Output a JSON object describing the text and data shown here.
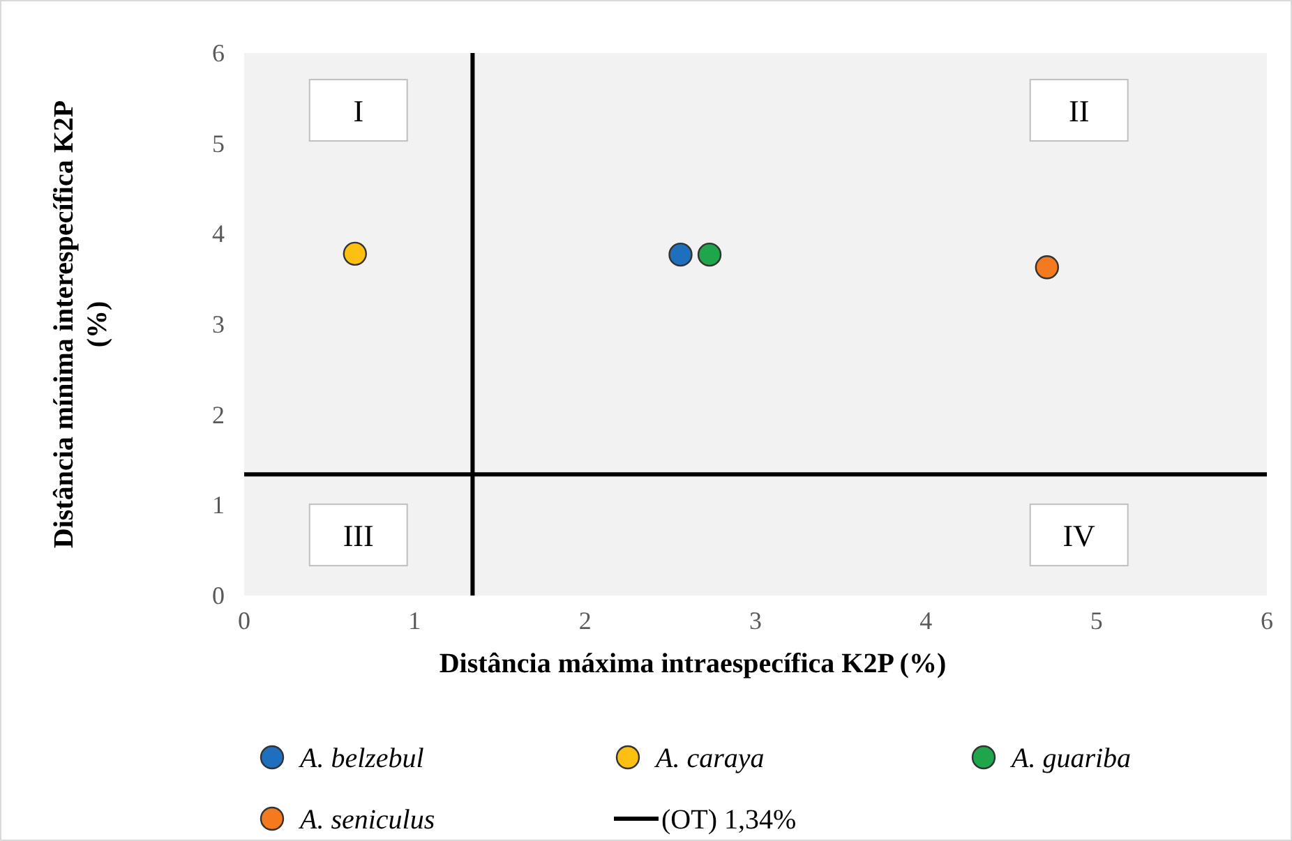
{
  "chart_data": {
    "type": "scatter",
    "xlabel": "Distância máxima intraespecífica K2P (%)",
    "ylabel": "Distância mínima interespecífica K2P (%)",
    "xlim": [
      0,
      6
    ],
    "ylim": [
      0,
      6
    ],
    "xticks": [
      0,
      1,
      2,
      3,
      4,
      5,
      6
    ],
    "yticks": [
      0,
      1,
      2,
      3,
      4,
      5,
      6
    ],
    "marker": "circle",
    "legend": "bottom",
    "grid": false,
    "series": [
      {
        "name": "A. belzebul",
        "color": "#1f6fbf",
        "x": [
          2.56
        ],
        "values": [
          3.77
        ]
      },
      {
        "name": "A. caraya",
        "color": "#fdc010",
        "x": [
          0.65
        ],
        "values": [
          3.78
        ]
      },
      {
        "name": "A. guariba",
        "color": "#1fa64a",
        "x": [
          2.73
        ],
        "values": [
          3.77
        ]
      },
      {
        "name": "A. seniculus",
        "color": "#f47a20",
        "x": [
          4.71
        ],
        "values": [
          3.63
        ]
      }
    ],
    "ref_lines": [
      {
        "axis": "x",
        "value": 1.34,
        "color": "#000000"
      },
      {
        "axis": "y",
        "value": 1.34,
        "label": "(OT) 1,34%",
        "color": "#000000"
      }
    ],
    "annotations": [
      "I",
      "II",
      "III",
      "IV"
    ]
  }
}
